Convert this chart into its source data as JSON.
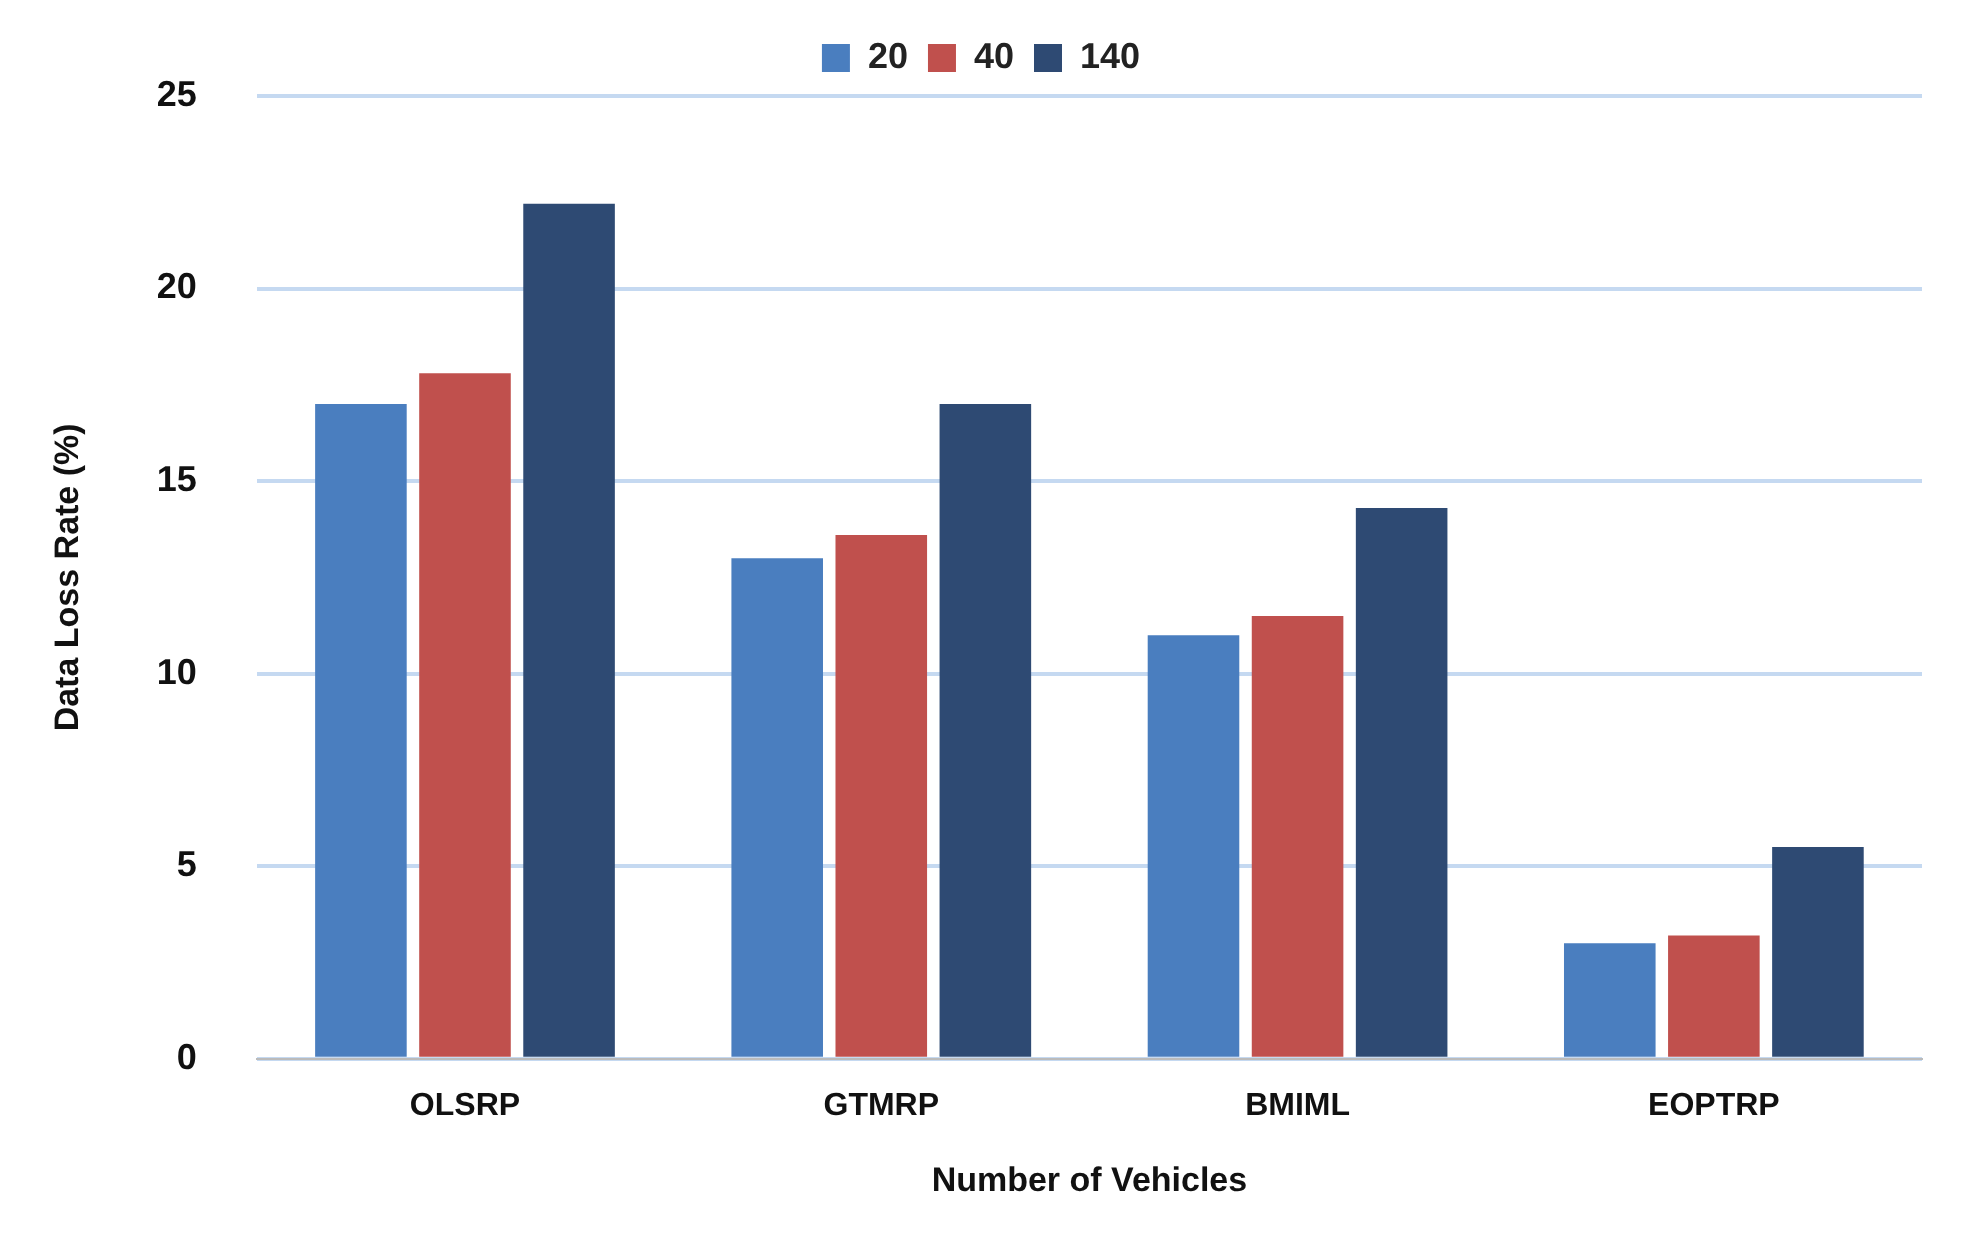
{
  "chart_data": {
    "type": "bar",
    "xlabel": "Number of Vehicles",
    "ylabel": "Data Loss Rate (%)",
    "categories": [
      "OLSRP",
      "GTMRP",
      "BMIML",
      "EOPTRP"
    ],
    "series": [
      {
        "name": "20",
        "color": "#4a7ebf",
        "values": [
          17.0,
          13.0,
          11.0,
          3.0
        ]
      },
      {
        "name": "40",
        "color": "#c0504d",
        "values": [
          17.8,
          13.6,
          11.5,
          3.2
        ]
      },
      {
        "name": "140",
        "color": "#2e4a73",
        "values": [
          22.2,
          17.0,
          14.3,
          5.5
        ]
      }
    ],
    "ylim": [
      0,
      25
    ],
    "yticks": [
      0,
      5,
      10,
      15,
      20,
      25
    ],
    "grid": "y",
    "legend": "top"
  }
}
